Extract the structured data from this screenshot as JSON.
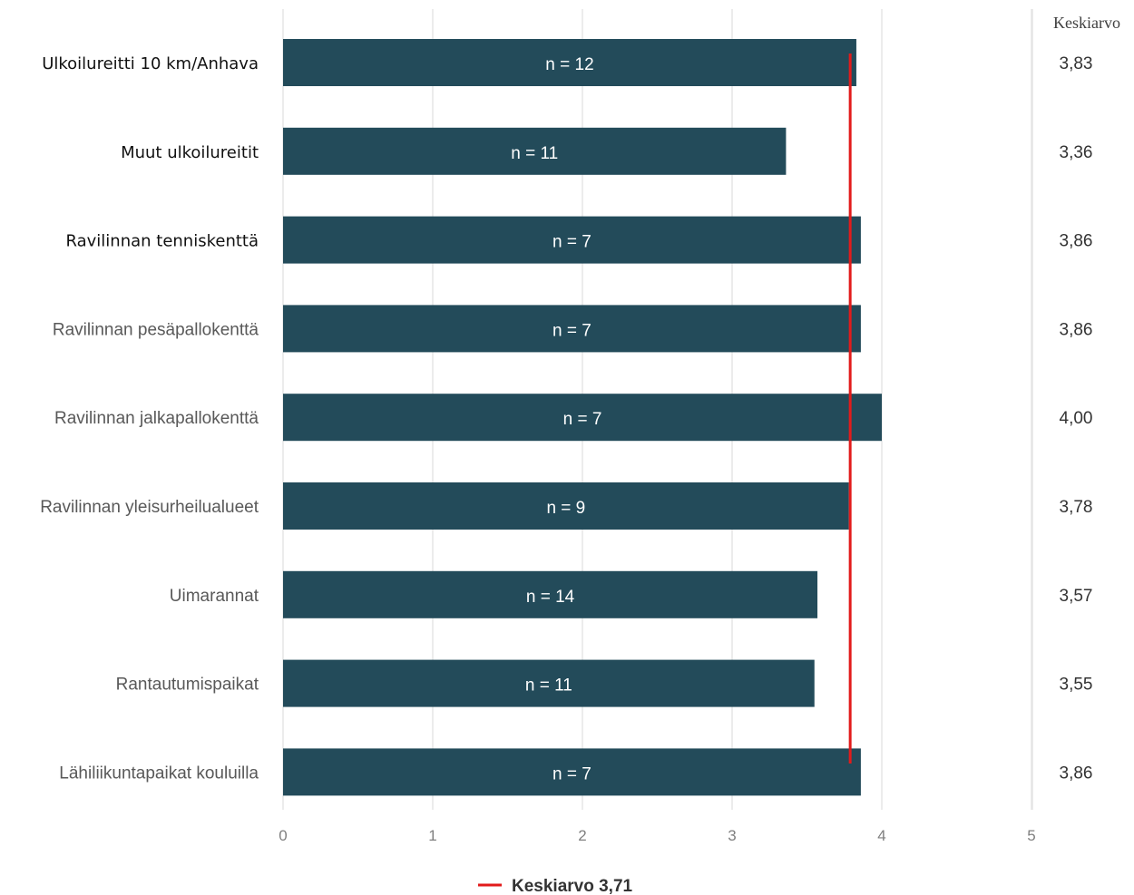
{
  "chart_data": {
    "type": "bar",
    "orientation": "horizontal",
    "categories": [
      "Ulkoilureitti 10 km/Anhava",
      "Muut ulkoilureitit",
      "Ravilinnan tenniskenttä",
      "Ravilinnan pesäpallokenttä",
      "Ravilinnan jalkapallokenttä",
      "Ravilinnan yleisurheilualueet",
      "Uimarannat",
      "Rantautumispaikat",
      "Lähiliikuntapaikat kouluilla"
    ],
    "values": [
      3.83,
      3.36,
      3.86,
      3.86,
      4.0,
      3.78,
      3.57,
      3.55,
      3.86
    ],
    "bar_labels": [
      "n = 12",
      "n = 11",
      "n = 7",
      "n = 7",
      "n = 7",
      "n = 9",
      "n = 14",
      "n = 11",
      "n = 7"
    ],
    "mean_column_header": "Keskiarvo",
    "mean_labels": [
      "3,83",
      "3,36",
      "3,86",
      "3,86",
      "4,00",
      "3,78",
      "3,57",
      "3,55",
      "3,86"
    ],
    "xlim": [
      0,
      5
    ],
    "xticks": [
      0,
      1,
      2,
      3,
      4,
      5
    ],
    "reference_line": {
      "value": 3.71,
      "label": "Keskiarvo 3,71",
      "color": "#e21b1b"
    },
    "bar_color": "#234b5a",
    "grid": true,
    "legend_position": "bottom"
  }
}
